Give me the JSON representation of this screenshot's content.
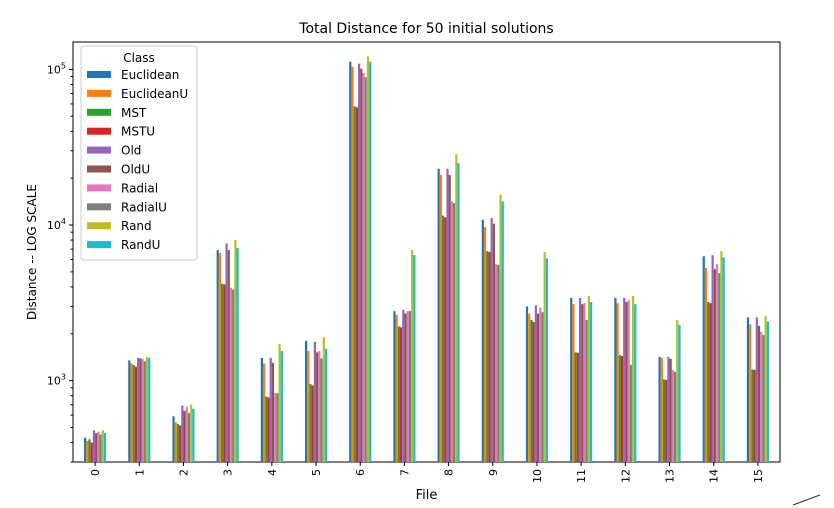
{
  "chart_data": {
    "type": "bar",
    "title": "Total Distance for 50 initial solutions",
    "xlabel": "File",
    "ylabel": "Distance -- LOG SCALE",
    "yscale": "log",
    "ylim": [
      300,
      150000
    ],
    "yticks": [
      {
        "value": 1000,
        "base": "10",
        "exp": "3"
      },
      {
        "value": 10000,
        "base": "10",
        "exp": "4"
      },
      {
        "value": 100000,
        "base": "10",
        "exp": "5"
      }
    ],
    "grid": false,
    "legend": {
      "title": "Class",
      "placement": "top-left"
    },
    "categories": [
      "0",
      "1",
      "2",
      "3",
      "4",
      "5",
      "6",
      "7",
      "8",
      "9",
      "10",
      "11",
      "12",
      "13",
      "14",
      "15"
    ],
    "series": [
      {
        "name": "Euclidean",
        "color": "#1f77b4",
        "values": [
          430,
          1350,
          590,
          6900,
          1400,
          1800,
          112000,
          2800,
          23000,
          10800,
          3000,
          3400,
          3400,
          1420,
          6300,
          2550
        ]
      },
      {
        "name": "EuclideanU",
        "color": "#ff7f0e",
        "values": [
          410,
          1290,
          540,
          6600,
          1290,
          1550,
          104000,
          2650,
          21000,
          9700,
          2700,
          3100,
          3150,
          1400,
          5300,
          2300
        ]
      },
      {
        "name": "MST",
        "color": "#2ca02c",
        "values": [
          420,
          1260,
          525,
          4200,
          790,
          950,
          58000,
          2230,
          11500,
          6800,
          2450,
          1520,
          1460,
          1020,
          3200,
          1180
        ]
      },
      {
        "name": "MSTU",
        "color": "#d62728",
        "values": [
          400,
          1230,
          515,
          4150,
          780,
          930,
          57000,
          2200,
          11200,
          6700,
          2380,
          1510,
          1440,
          1010,
          3150,
          1170
        ]
      },
      {
        "name": "Old",
        "color": "#9467bd",
        "values": [
          480,
          1400,
          690,
          7600,
          1400,
          1780,
          109000,
          2850,
          23000,
          11100,
          3050,
          3400,
          3400,
          1420,
          6400,
          2550
        ]
      },
      {
        "name": "OldU",
        "color": "#8c564b",
        "values": [
          460,
          1390,
          640,
          6900,
          1300,
          1520,
          101000,
          2700,
          21000,
          10200,
          2700,
          3100,
          3200,
          1380,
          5200,
          2250
        ]
      },
      {
        "name": "Radial",
        "color": "#e377c2",
        "values": [
          470,
          1380,
          680,
          3950,
          830,
          1550,
          95000,
          2800,
          14200,
          5600,
          2950,
          3150,
          3300,
          1170,
          5600,
          2050
        ]
      },
      {
        "name": "RadialU",
        "color": "#7f7f7f",
        "values": [
          450,
          1330,
          620,
          3850,
          830,
          1390,
          89000,
          2800,
          13800,
          5550,
          2750,
          2450,
          1260,
          1140,
          4900,
          1960
        ]
      },
      {
        "name": "Rand",
        "color": "#bcbd22",
        "values": [
          480,
          1420,
          700,
          8000,
          1720,
          1900,
          121000,
          6900,
          28500,
          15700,
          6700,
          3500,
          3500,
          2450,
          6800,
          2600
        ]
      },
      {
        "name": "RandU",
        "color": "#17becf",
        "values": [
          460,
          1400,
          660,
          7100,
          1550,
          1600,
          112000,
          6400,
          25000,
          14200,
          6100,
          3200,
          3100,
          2280,
          6200,
          2400
        ]
      }
    ]
  }
}
